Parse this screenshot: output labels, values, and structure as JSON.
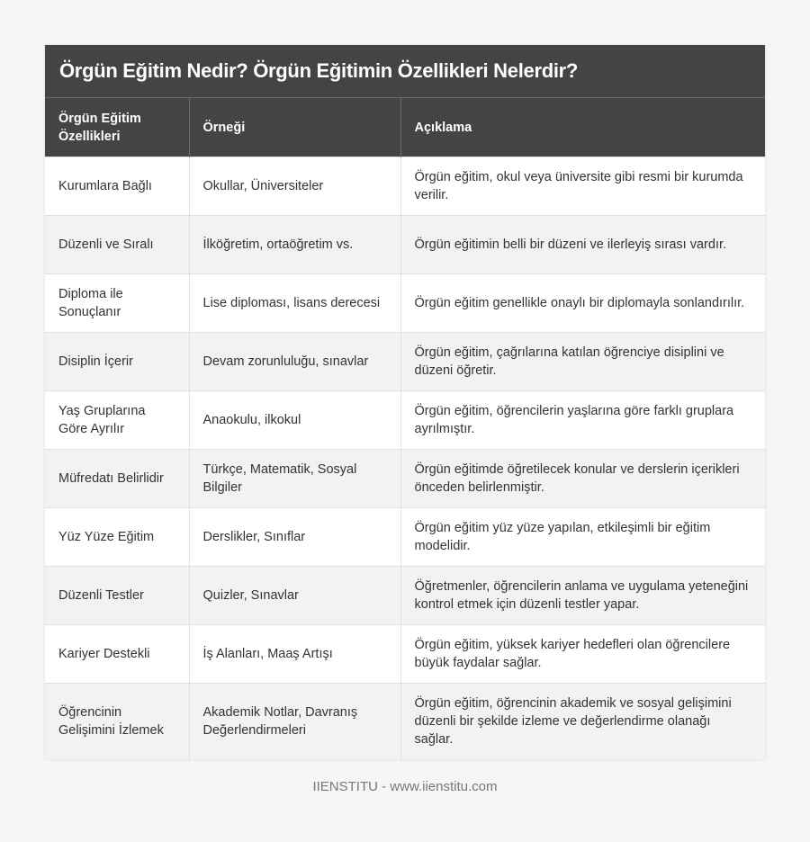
{
  "title": "Örgün Eğitim Nedir? Örgün Eğitimin Özellikleri Nelerdir?",
  "columns": [
    "Örgün Eğitim Özellikleri",
    "Örneği",
    "Açıklama"
  ],
  "rows": [
    [
      "Kurumlara Bağlı",
      "Okullar, Üniversiteler",
      "Örgün eğitim, okul veya üniversite gibi resmi bir kurumda verilir."
    ],
    [
      "Düzenli ve Sıralı",
      "İlköğretim, ortaöğretim vs.",
      "Örgün eğitimin belli bir düzeni ve ilerleyiş sırası vardır."
    ],
    [
      "Diploma ile Sonuçlanır",
      "Lise diploması, lisans derecesi",
      "Örgün eğitim genellikle onaylı bir diplomayla sonlandırılır."
    ],
    [
      "Disiplin İçerir",
      "Devam zorunluluğu, sınavlar",
      "Örgün eğitim, çağrılarına katılan öğrenciye disiplini ve düzeni öğretir."
    ],
    [
      "Yaş Gruplarına Göre Ayrılır",
      "Anaokulu, ilkokul",
      "Örgün eğitim, öğrencilerin yaşlarına göre farklı gruplara ayrılmıştır."
    ],
    [
      "Müfredatı Belirlidir",
      "Türkçe, Matematik, Sosyal Bilgiler",
      "Örgün eğitimde öğretilecek konular ve derslerin içerikleri önceden belirlenmiştir."
    ],
    [
      "Yüz Yüze Eğitim",
      "Derslikler, Sınıflar",
      "Örgün eğitim yüz yüze yapılan, etkileşimli bir eğitim modelidir."
    ],
    [
      "Düzenli Testler",
      "Quizler, Sınavlar",
      "Öğretmenler, öğrencilerin anlama ve uygulama yeteneğini kontrol etmek için düzenli testler yapar."
    ],
    [
      "Kariyer Destekli",
      "İş Alanları, Maaş Artışı",
      "Örgün eğitim, yüksek kariyer hedefleri olan öğrencilere büyük faydalar sağlar."
    ],
    [
      "Öğrencinin Gelişimini İzlemek",
      "Akademik Notlar, Davranış Değerlendirmeleri",
      "Örgün eğitim, öğrencinin akademik ve sosyal gelişimini düzenli bir şekilde izleme ve değerlendirme olanağı sağlar."
    ]
  ],
  "footer": "IIENSTITU - www.iienstitu.com"
}
